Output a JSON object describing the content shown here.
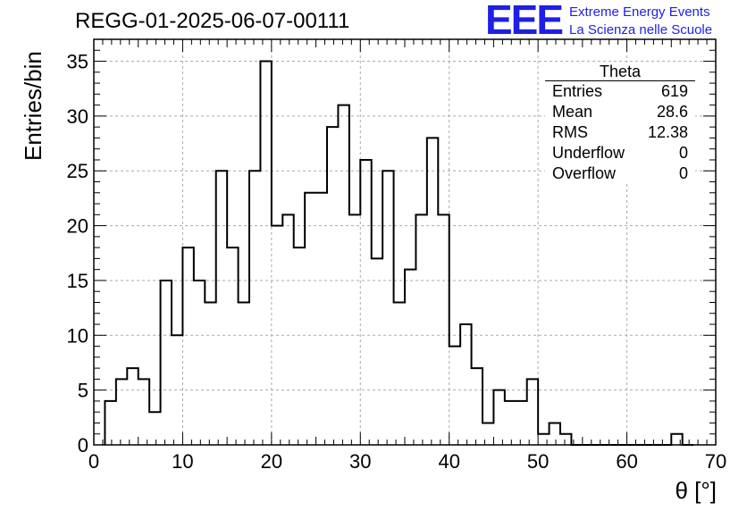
{
  "run_title": "REGG-01-2025-06-07-00111",
  "logo": {
    "mark": "EEE",
    "line1": "Extreme Energy Events",
    "line2": "La Scienza nelle Scuole",
    "color": "#1f1fe6"
  },
  "stats": {
    "title": "Theta",
    "rows": [
      {
        "label": "Entries",
        "value": "619"
      },
      {
        "label": "Mean",
        "value": "28.6"
      },
      {
        "label": "RMS",
        "value": "12.38"
      },
      {
        "label": "Underflow",
        "value": "0"
      },
      {
        "label": "Overflow",
        "value": "0"
      }
    ]
  },
  "chart_data": {
    "type": "bar",
    "style": "step-histogram",
    "xlabel": "θ [°]",
    "ylabel": "Entries/bin",
    "xlim": [
      0,
      70
    ],
    "ylim": [
      0,
      37
    ],
    "grid": true,
    "xticks": [
      0,
      10,
      20,
      30,
      40,
      50,
      60,
      70
    ],
    "yticks": [
      0,
      5,
      10,
      15,
      20,
      25,
      30,
      35
    ],
    "bin_edges_start": 1.25,
    "bin_width": 1.25,
    "bin_centers": [
      1.875,
      3.125,
      4.375,
      5.625,
      6.875,
      8.125,
      9.375,
      10.625,
      11.875,
      13.125,
      14.375,
      15.625,
      16.875,
      18.125,
      19.375,
      20.625,
      21.875,
      23.125,
      24.375,
      25.625,
      26.875,
      28.125,
      29.375,
      30.625,
      31.875,
      33.125,
      34.375,
      35.625,
      36.875,
      38.125,
      39.375,
      40.625,
      41.875,
      43.125,
      44.375,
      45.625,
      46.875,
      48.125,
      49.375,
      50.625,
      51.875,
      53.125,
      54.375,
      55.625,
      56.875,
      58.125,
      59.375,
      60.625,
      61.875,
      63.125,
      64.375,
      65.625,
      66.875
    ],
    "values": [
      4,
      6,
      7,
      6,
      3,
      15,
      10,
      18,
      15,
      13,
      25,
      18,
      13,
      25,
      35,
      20,
      21,
      18,
      23,
      23,
      29,
      31,
      21,
      26,
      17,
      25,
      13,
      16,
      21,
      28,
      21,
      9,
      11,
      7,
      2,
      5,
      4,
      4,
      6,
      1,
      2,
      1,
      0,
      0,
      0,
      0,
      0,
      0,
      0,
      0,
      0,
      1,
      0
    ],
    "line_color": "#000000",
    "grid_color": "#aaaaaa"
  }
}
